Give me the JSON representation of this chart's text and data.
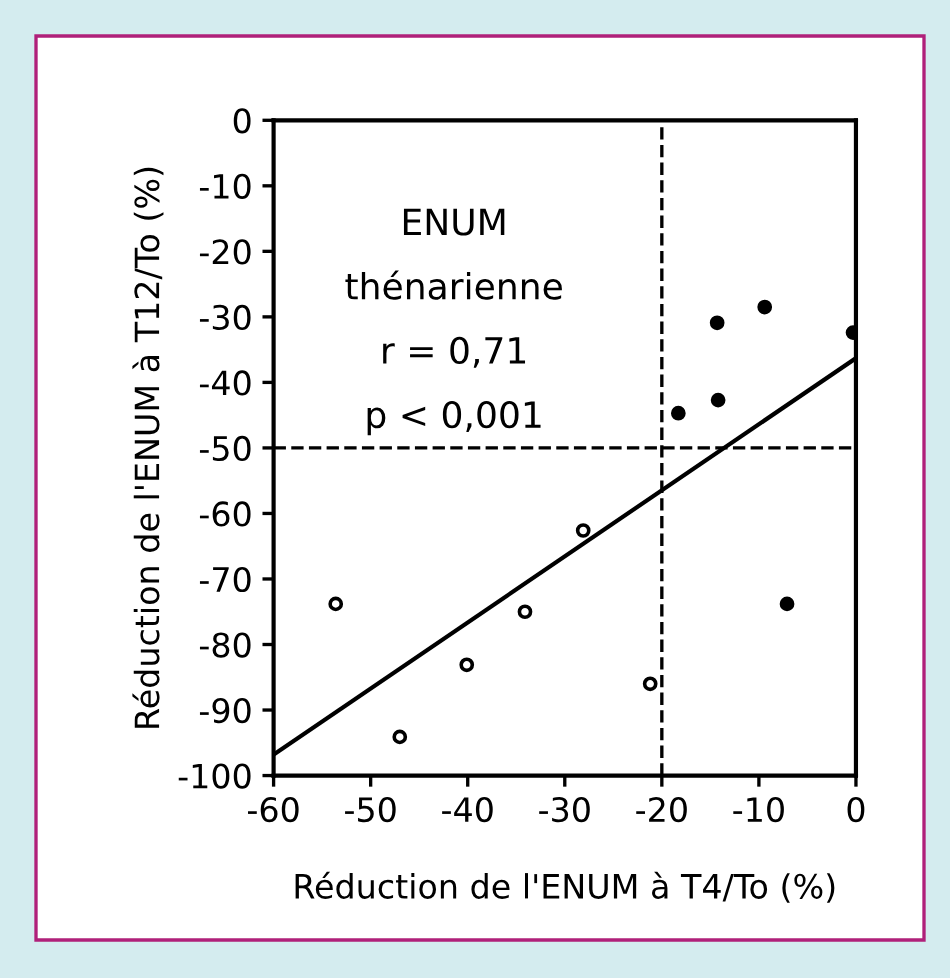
{
  "chart_data": {
    "type": "scatter",
    "xlabel": "Réduction de l'ENUM à T4/To (%)",
    "ylabel": "Réduction de l'ENUM à T12/To (%)",
    "annotations": [
      "ENUM",
      "thénarienne",
      "r = 0,71",
      "p < 0,001"
    ],
    "series": [
      {
        "type": "scatter",
        "color": "#ffffff",
        "marker": "circle",
        "x": [
          -53.6,
          -47.0,
          -40.1,
          -34.1,
          -28.1,
          -21.2
        ],
        "values": [
          -73.8,
          -94.1,
          -83.1,
          -75.0,
          -62.6,
          -86.0
        ]
      },
      {
        "type": "scatter",
        "color": "#000000",
        "marker": "circle",
        "x": [
          -18.3,
          -14.3,
          -14.2,
          -9.4,
          -7.1,
          -0.3
        ],
        "values": [
          -44.7,
          -30.9,
          -42.7,
          -28.5,
          -73.8,
          -32.4
        ]
      },
      {
        "type": "line",
        "color": "#000000",
        "marker": "none",
        "x": [
          -60,
          0
        ],
        "values": [
          -96.8,
          -36.3
        ]
      }
    ],
    "ref_lines": [
      {
        "axis": "x",
        "value": -20,
        "color": "#000000",
        "line_style": "dashed"
      },
      {
        "axis": "y",
        "value": -50,
        "color": "#000000",
        "line_style": "dashed"
      }
    ],
    "xlim": [
      -60,
      0
    ],
    "ylim": [
      -100,
      0
    ],
    "xticks": [
      -60,
      -50,
      -40,
      -30,
      -20,
      -10,
      0
    ],
    "yticks": [
      -100,
      -90,
      -80,
      -70,
      -60,
      -50,
      -40,
      -30,
      -20,
      -10,
      0
    ],
    "grid": false,
    "legend": false
  }
}
